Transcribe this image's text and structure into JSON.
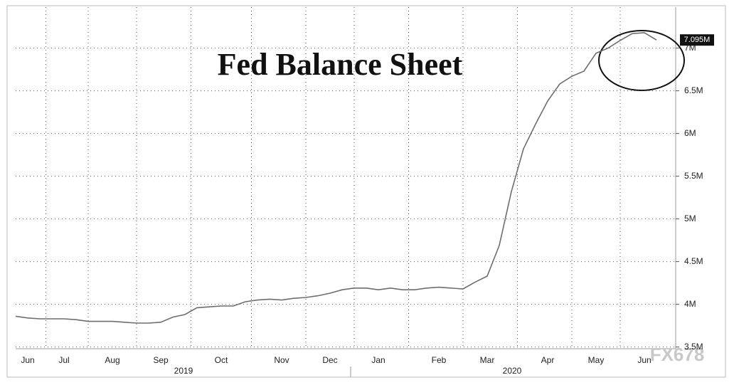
{
  "chart_data": {
    "type": "line",
    "title": "Fed Balance Sheet",
    "categories": [
      null,
      "Jun",
      null,
      null,
      "Jul",
      null,
      null,
      null,
      "Aug",
      null,
      null,
      null,
      "Sep",
      null,
      null,
      null,
      null,
      "Oct",
      null,
      null,
      null,
      null,
      "Nov",
      null,
      null,
      null,
      "Dec",
      null,
      null,
      null,
      "Jan",
      null,
      null,
      null,
      null,
      "Feb",
      null,
      null,
      null,
      "Mar",
      null,
      null,
      null,
      null,
      "Apr",
      null,
      null,
      null,
      "May",
      null,
      null,
      null,
      "Jun",
      null
    ],
    "years": [
      "2019",
      "2020"
    ],
    "series": [
      {
        "color": "#6e6e6e",
        "values": [
          3.86,
          3.84,
          3.83,
          3.83,
          3.83,
          3.82,
          3.8,
          3.8,
          3.8,
          3.79,
          3.78,
          3.78,
          3.79,
          3.85,
          3.88,
          3.96,
          3.97,
          3.98,
          3.98,
          4.03,
          4.05,
          4.06,
          4.05,
          4.07,
          4.08,
          4.1,
          4.13,
          4.17,
          4.19,
          4.19,
          4.17,
          4.19,
          4.17,
          4.17,
          4.19,
          4.2,
          4.19,
          4.18,
          4.26,
          4.33,
          4.69,
          5.32,
          5.82,
          6.11,
          6.38,
          6.58,
          6.67,
          6.73,
          6.94,
          7.0,
          7.09,
          7.17,
          7.18,
          7.095
        ],
        "last_value_label": "7.095M"
      }
    ],
    "ylim": [
      3.48,
      7.48
    ],
    "yticks": [
      {
        "value": 3.5,
        "label": "3.5M"
      },
      {
        "value": 4,
        "label": "4M"
      },
      {
        "value": 4.5,
        "label": "4.5M"
      },
      {
        "value": 5,
        "label": "5M"
      },
      {
        "value": 5.5,
        "label": "5.5M"
      },
      {
        "value": 6,
        "label": "6M"
      },
      {
        "value": 6.5,
        "label": "6.5M"
      },
      {
        "value": 7,
        "label": "7M"
      }
    ],
    "grid": true,
    "watermark": "FX678"
  }
}
